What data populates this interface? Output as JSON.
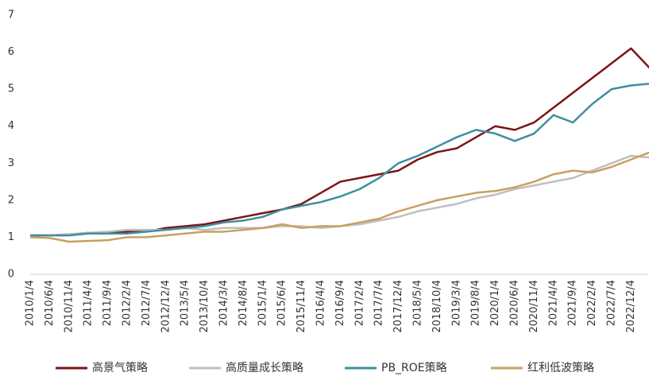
{
  "chart_data": {
    "type": "line",
    "categories": [
      "2010/1/4",
      "2010/6/4",
      "2010/11/4",
      "2011/4/4",
      "2011/9/4",
      "2012/2/4",
      "2012/7/4",
      "2012/12/4",
      "2013/5/4",
      "2013/10/4",
      "2014/3/4",
      "2014/8/4",
      "2015/1/4",
      "2015/6/4",
      "2015/11/4",
      "2016/4/4",
      "2016/9/4",
      "2017/2/4",
      "2017/7/4",
      "2017/12/4",
      "2018/5/4",
      "2018/10/4",
      "2019/3/4",
      "2019/8/4",
      "2020/1/4",
      "2020/6/4",
      "2020/11/4",
      "2021/4/4",
      "2021/9/4",
      "2022/2/4",
      "2022/7/4",
      "2022/12/4",
      null
    ],
    "series": [
      {
        "name": "高景气策略",
        "color": "#7b1416",
        "values": [
          1.05,
          1.05,
          1.08,
          1.12,
          1.12,
          1.15,
          1.15,
          1.25,
          1.3,
          1.35,
          1.45,
          1.55,
          1.65,
          1.75,
          1.9,
          2.2,
          2.5,
          2.6,
          2.7,
          2.8,
          3.1,
          3.3,
          3.4,
          3.7,
          4.0,
          3.9,
          4.1,
          4.5,
          4.9,
          5.3,
          5.7,
          6.1,
          5.55
        ]
      },
      {
        "name": "高质量成长策略",
        "color": "#bfbfbf",
        "values": [
          1.05,
          1.05,
          1.08,
          1.12,
          1.15,
          1.2,
          1.2,
          1.2,
          1.25,
          1.2,
          1.25,
          1.25,
          1.25,
          1.3,
          1.3,
          1.25,
          1.3,
          1.35,
          1.45,
          1.55,
          1.7,
          1.8,
          1.9,
          2.05,
          2.15,
          2.3,
          2.4,
          2.5,
          2.6,
          2.8,
          3.0,
          3.2,
          3.15
        ]
      },
      {
        "name": "PB_ROE策略",
        "color": "#3f8fa0",
        "values": [
          1.05,
          1.05,
          1.05,
          1.1,
          1.1,
          1.1,
          1.15,
          1.2,
          1.25,
          1.3,
          1.4,
          1.45,
          1.55,
          1.75,
          1.85,
          1.95,
          2.1,
          2.3,
          2.6,
          3.0,
          3.2,
          3.45,
          3.7,
          3.9,
          3.8,
          3.6,
          3.8,
          4.3,
          4.1,
          4.6,
          5.0,
          5.1,
          5.15
        ]
      },
      {
        "name": "红利低波策略",
        "color": "#c8a060",
        "values": [
          1.0,
          0.98,
          0.88,
          0.9,
          0.92,
          1.0,
          1.0,
          1.05,
          1.1,
          1.15,
          1.15,
          1.2,
          1.25,
          1.35,
          1.25,
          1.3,
          1.3,
          1.4,
          1.5,
          1.7,
          1.85,
          2.0,
          2.1,
          2.2,
          2.25,
          2.35,
          2.5,
          2.7,
          2.8,
          2.75,
          2.9,
          3.1,
          3.3
        ]
      }
    ],
    "ylim": [
      0,
      7
    ],
    "yticks": [
      0,
      1,
      2,
      3,
      4,
      5,
      6,
      7
    ],
    "legend": "bottom"
  }
}
